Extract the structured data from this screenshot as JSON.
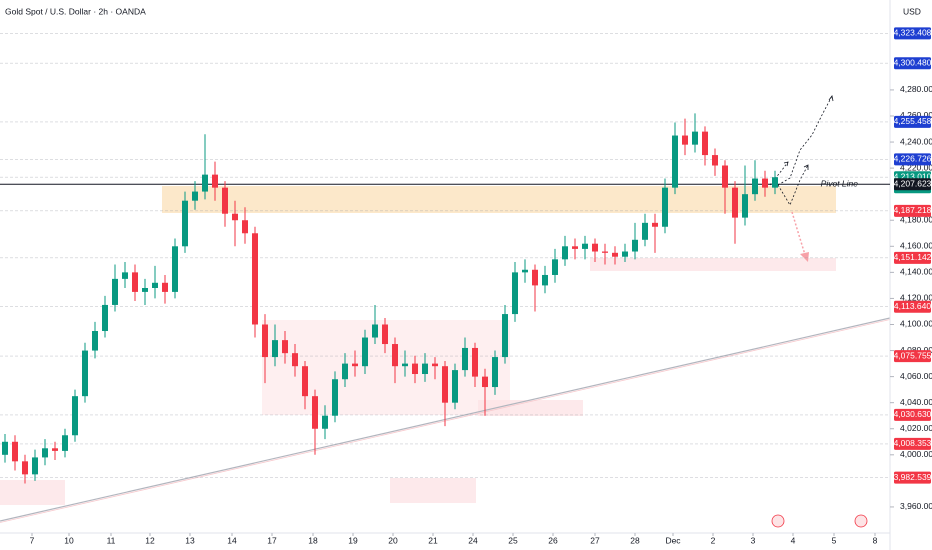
{
  "chart_data": {
    "type": "candlestick",
    "title": "Gold Spot / U.S. Dollar · 2h · OANDA",
    "currency": "USD",
    "pivot_label": "Pivot Line",
    "countdown": "56:28",
    "up_color": "#089981",
    "down_color": "#f23645",
    "xlim": [
      -0.5,
      88.5
    ],
    "ylim": [
      3940,
      4349
    ],
    "xticks": [
      {
        "value": 2.7,
        "label": "7"
      },
      {
        "value": 6.4,
        "label": "10"
      },
      {
        "value": 10.6,
        "label": "11"
      },
      {
        "value": 14.5,
        "label": "12"
      },
      {
        "value": 18.5,
        "label": "13"
      },
      {
        "value": 22.7,
        "label": "14"
      },
      {
        "value": 26.7,
        "label": "17"
      },
      {
        "value": 30.8,
        "label": "18"
      },
      {
        "value": 34.8,
        "label": "19"
      },
      {
        "value": 38.8,
        "label": "20"
      },
      {
        "value": 42.8,
        "label": "21"
      },
      {
        "value": 46.8,
        "label": "24"
      },
      {
        "value": 50.8,
        "label": "25"
      },
      {
        "value": 54.8,
        "label": "26"
      },
      {
        "value": 59,
        "label": "27"
      },
      {
        "value": 63,
        "label": "28"
      },
      {
        "value": 66.8,
        "label": "Dec"
      },
      {
        "value": 70.8,
        "label": "2"
      },
      {
        "value": 74.8,
        "label": "3"
      },
      {
        "value": 78.8,
        "label": "4"
      },
      {
        "value": 82.9,
        "label": "5"
      },
      {
        "value": 87,
        "label": "8"
      }
    ],
    "yticks": [
      {
        "value": 4280,
        "label": "4,280.000"
      },
      {
        "value": 4260,
        "label": "4,260.000"
      },
      {
        "value": 4240,
        "label": "4,240.000"
      },
      {
        "value": 4220,
        "label": "4,220.000"
      },
      {
        "value": 4180,
        "label": "4,180.000"
      },
      {
        "value": 4160,
        "label": "4,160.000"
      },
      {
        "value": 4140,
        "label": "4,140.000"
      },
      {
        "value": 4120,
        "label": "4,120.000"
      },
      {
        "value": 4100,
        "label": "4,100.000"
      },
      {
        "value": 4080,
        "label": "4,080.000"
      },
      {
        "value": 4060,
        "label": "4,060.000"
      },
      {
        "value": 4040,
        "label": "4,040.000"
      },
      {
        "value": 4020,
        "label": "4,020.000"
      },
      {
        "value": 4000,
        "label": "4,000.000"
      },
      {
        "value": 3960,
        "label": "3,960.000"
      }
    ],
    "levels": [
      {
        "value": 4323.408,
        "label": "4,323.408",
        "color": "#1e3fd1"
      },
      {
        "value": 4300.48,
        "label": "4,300.480",
        "color": "#1e3fd1"
      },
      {
        "value": 4255.458,
        "label": "4,255.458",
        "color": "#1e3fd1"
      },
      {
        "value": 4226.726,
        "label": "4,226.726",
        "color": "#1e3fd1"
      },
      {
        "value": 4213.01,
        "label": "4,213.010",
        "color": "#089981"
      },
      {
        "value": 4207.623,
        "label": "4,207.623",
        "color": "#131722"
      },
      {
        "value": 4187.218,
        "label": "4,187.218",
        "color": "#f23645"
      },
      {
        "value": 4151.142,
        "label": "4,151.142",
        "color": "#f23645"
      },
      {
        "value": 4113.64,
        "label": "4,113.640",
        "color": "#f23645"
      },
      {
        "value": 4075.755,
        "label": "4,075.755",
        "color": "#f23645"
      },
      {
        "value": 4030.63,
        "label": "4,030.630",
        "color": "#f23645"
      },
      {
        "value": 4008.353,
        "label": "4,008.353",
        "color": "#f23645"
      },
      {
        "value": 3982.539,
        "label": "3,982.539",
        "color": "#f23645"
      }
    ],
    "candles": [
      [
        4000,
        4016,
        3994,
        4010
      ],
      [
        4010,
        4015,
        3988,
        3995
      ],
      [
        3995,
        4000,
        3978,
        3985
      ],
      [
        3985,
        4004,
        3980,
        3998
      ],
      [
        3998,
        4012,
        3992,
        4005
      ],
      [
        4005,
        4010,
        3996,
        4003
      ],
      [
        4003,
        4020,
        3998,
        4015
      ],
      [
        4015,
        4050,
        4010,
        4045
      ],
      [
        4045,
        4086,
        4040,
        4080
      ],
      [
        4080,
        4102,
        4074,
        4095
      ],
      [
        4095,
        4122,
        4090,
        4115
      ],
      [
        4115,
        4146,
        4110,
        4135
      ],
      [
        4135,
        4148,
        4128,
        4140
      ],
      [
        4140,
        4146,
        4118,
        4125
      ],
      [
        4125,
        4135,
        4115,
        4128
      ],
      [
        4128,
        4145,
        4120,
        4132
      ],
      [
        4132,
        4138,
        4116,
        4125
      ],
      [
        4125,
        4166,
        4120,
        4160
      ],
      [
        4160,
        4202,
        4155,
        4195
      ],
      [
        4195,
        4210,
        4188,
        4202
      ],
      [
        4202,
        4246,
        4196,
        4215
      ],
      [
        4215,
        4225,
        4195,
        4205
      ],
      [
        4205,
        4210,
        4175,
        4185
      ],
      [
        4185,
        4195,
        4160,
        4180
      ],
      [
        4180,
        4190,
        4162,
        4170
      ],
      [
        4170,
        4175,
        4090,
        4100
      ],
      [
        4100,
        4108,
        4055,
        4075
      ],
      [
        4075,
        4100,
        4068,
        4088
      ],
      [
        4088,
        4095,
        4070,
        4078
      ],
      [
        4078,
        4085,
        4060,
        4068
      ],
      [
        4068,
        4072,
        4035,
        4045
      ],
      [
        4045,
        4050,
        4000,
        4020
      ],
      [
        4020,
        4038,
        4012,
        4030
      ],
      [
        4030,
        4064,
        4025,
        4058
      ],
      [
        4058,
        4078,
        4052,
        4070
      ],
      [
        4070,
        4080,
        4060,
        4068
      ],
      [
        4068,
        4096,
        4062,
        4090
      ],
      [
        4090,
        4115,
        4085,
        4100
      ],
      [
        4100,
        4105,
        4078,
        4085
      ],
      [
        4085,
        4090,
        4055,
        4068
      ],
      [
        4068,
        4080,
        4060,
        4070
      ],
      [
        4070,
        4076,
        4055,
        4062
      ],
      [
        4062,
        4078,
        4056,
        4070
      ],
      [
        4070,
        4075,
        4058,
        4068
      ],
      [
        4068,
        4072,
        4022,
        4040
      ],
      [
        4040,
        4070,
        4035,
        4065
      ],
      [
        4065,
        4090,
        4060,
        4082
      ],
      [
        4082,
        4086,
        4052,
        4060
      ],
      [
        4060,
        4066,
        4030,
        4052
      ],
      [
        4052,
        4080,
        4046,
        4075
      ],
      [
        4075,
        4115,
        4070,
        4108
      ],
      [
        4108,
        4148,
        4102,
        4140
      ],
      [
        4140,
        4150,
        4132,
        4142
      ],
      [
        4142,
        4146,
        4110,
        4130
      ],
      [
        4130,
        4145,
        4124,
        4138
      ],
      [
        4138,
        4158,
        4132,
        4150
      ],
      [
        4150,
        4168,
        4145,
        4160
      ],
      [
        4160,
        4166,
        4150,
        4158
      ],
      [
        4158,
        4168,
        4150,
        4162
      ],
      [
        4162,
        4166,
        4148,
        4156
      ],
      [
        4156,
        4162,
        4146,
        4155
      ],
      [
        4155,
        4160,
        4146,
        4152
      ],
      [
        4152,
        4162,
        4148,
        4156
      ],
      [
        4156,
        4178,
        4150,
        4165
      ],
      [
        4165,
        4185,
        4160,
        4178
      ],
      [
        4178,
        4185,
        4155,
        4175
      ],
      [
        4175,
        4212,
        4170,
        4205
      ],
      [
        4205,
        4255,
        4200,
        4245
      ],
      [
        4245,
        4258,
        4230,
        4238
      ],
      [
        4238,
        4262,
        4232,
        4248
      ],
      [
        4248,
        4252,
        4222,
        4230
      ],
      [
        4230,
        4235,
        4214,
        4222
      ],
      [
        4222,
        4226,
        4185,
        4205
      ],
      [
        4205,
        4210,
        4162,
        4182
      ],
      [
        4182,
        4222,
        4176,
        4200
      ],
      [
        4200,
        4226,
        4195,
        4212
      ],
      [
        4212,
        4218,
        4198,
        4205
      ],
      [
        4205,
        4218,
        4200,
        4213
      ]
    ]
  }
}
